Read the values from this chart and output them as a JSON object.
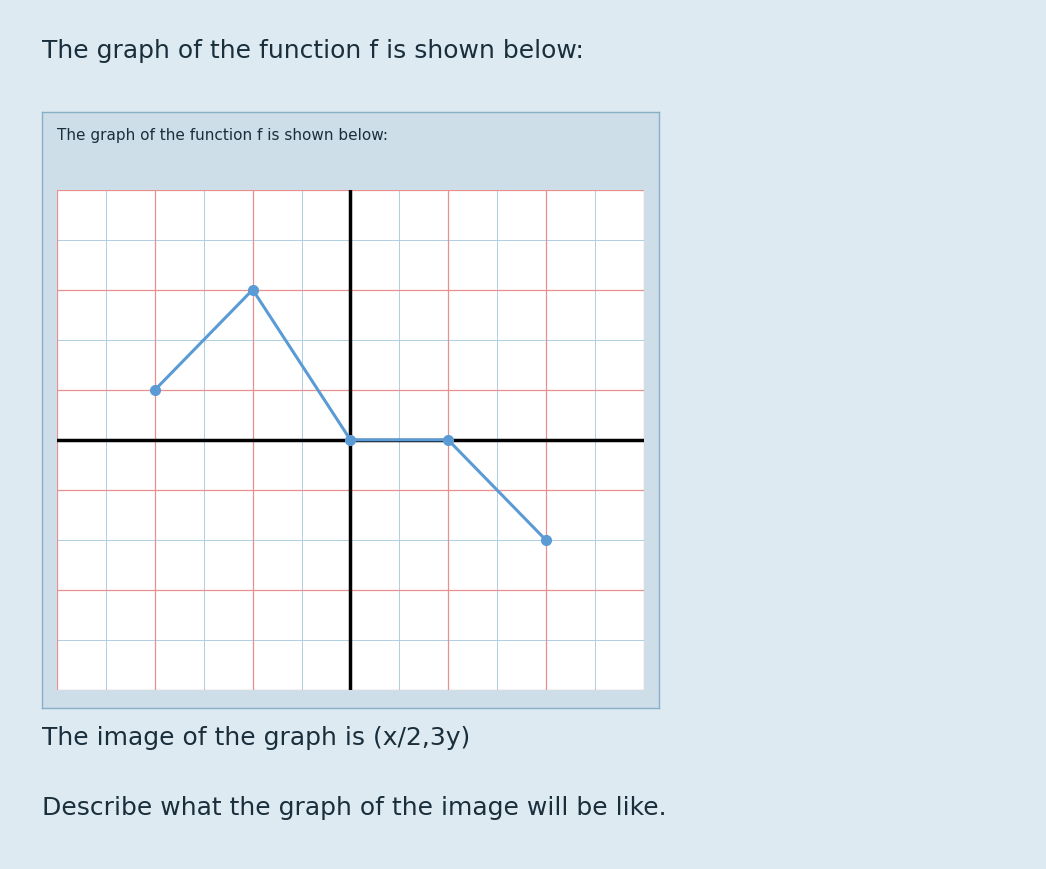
{
  "title_main": "The graph of the function f is shown below:",
  "title_inner": "The graph of the function f is shown below:",
  "text_line1": "The image of the graph is (x/2,3y)",
  "text_line2": "Describe what the graph of the image will be like.",
  "background_color": "#ddeaf2",
  "box_background": "#cddee9",
  "graph_background": "#ffffff",
  "grid_major_color": "#e89090",
  "grid_minor_color": "#aacce0",
  "axis_color": "#000000",
  "line_color": "#5b9bd5",
  "dot_color": "#5b9bd5",
  "box_border_color": "#8ab0c8",
  "points_x": [
    -4,
    -2,
    0,
    2,
    4
  ],
  "points_y": [
    1,
    3,
    0,
    0,
    -2
  ],
  "xlim": [
    -6,
    6
  ],
  "ylim": [
    -5,
    5
  ],
  "title_fontsize": 18,
  "inner_title_fontsize": 11,
  "text_fontsize": 18,
  "line_width": 2.2,
  "dot_size": 7,
  "title_color": "#1a2e3b",
  "text_color": "#1a2e3b"
}
